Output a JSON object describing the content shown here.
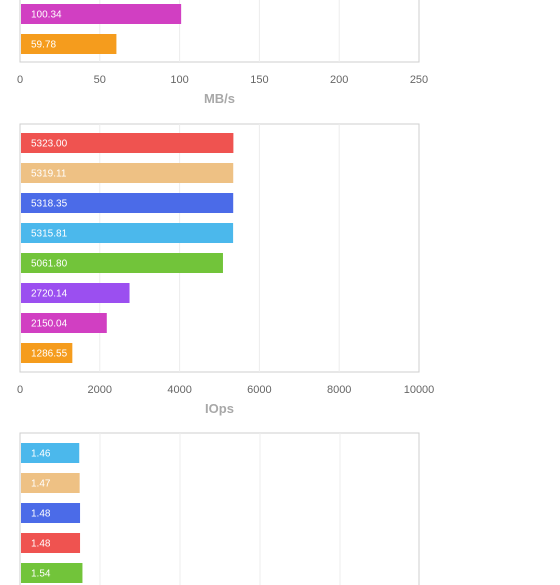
{
  "chart_data": [
    {
      "type": "bar",
      "orientation": "horizontal",
      "xlabel": "MB/s",
      "xlim": [
        0,
        250
      ],
      "xticks": [
        "0",
        "50",
        "100",
        "150",
        "200",
        "250"
      ],
      "grid": true,
      "bars": [
        {
          "value": 100.34,
          "label": "100.34",
          "color": "#d13fc2"
        },
        {
          "value": 59.78,
          "label": "59.78",
          "color": "#f59c1d"
        }
      ]
    },
    {
      "type": "bar",
      "orientation": "horizontal",
      "xlabel": "IOps",
      "xlim": [
        0,
        10000
      ],
      "xticks": [
        "0",
        "2000",
        "4000",
        "6000",
        "8000",
        "10000"
      ],
      "grid": true,
      "bars": [
        {
          "value": 5323.0,
          "label": "5323.00",
          "color": "#ef5350"
        },
        {
          "value": 5319.11,
          "label": "5319.11",
          "color": "#eec184"
        },
        {
          "value": 5318.35,
          "label": "5318.35",
          "color": "#4b6be8"
        },
        {
          "value": 5315.81,
          "label": "5315.81",
          "color": "#4bb8ec"
        },
        {
          "value": 5061.8,
          "label": "5061.80",
          "color": "#72c43a"
        },
        {
          "value": 2720.14,
          "label": "2720.14",
          "color": "#9b4ff0"
        },
        {
          "value": 2150.04,
          "label": "2150.04",
          "color": "#d13fc2"
        },
        {
          "value": 1286.55,
          "label": "1286.55",
          "color": "#f59c1d"
        }
      ]
    },
    {
      "type": "bar",
      "orientation": "horizontal",
      "xlabel": "",
      "xlim": [
        0,
        10
      ],
      "xticks": [],
      "grid": true,
      "bars": [
        {
          "value": 1.46,
          "label": "1.46",
          "color": "#4bb8ec"
        },
        {
          "value": 1.47,
          "label": "1.47",
          "color": "#eec184"
        },
        {
          "value": 1.48,
          "label": "1.48",
          "color": "#4b6be8"
        },
        {
          "value": 1.48,
          "label": "1.48",
          "color": "#ef5350"
        },
        {
          "value": 1.54,
          "label": "1.54",
          "color": "#72c43a"
        }
      ]
    }
  ]
}
